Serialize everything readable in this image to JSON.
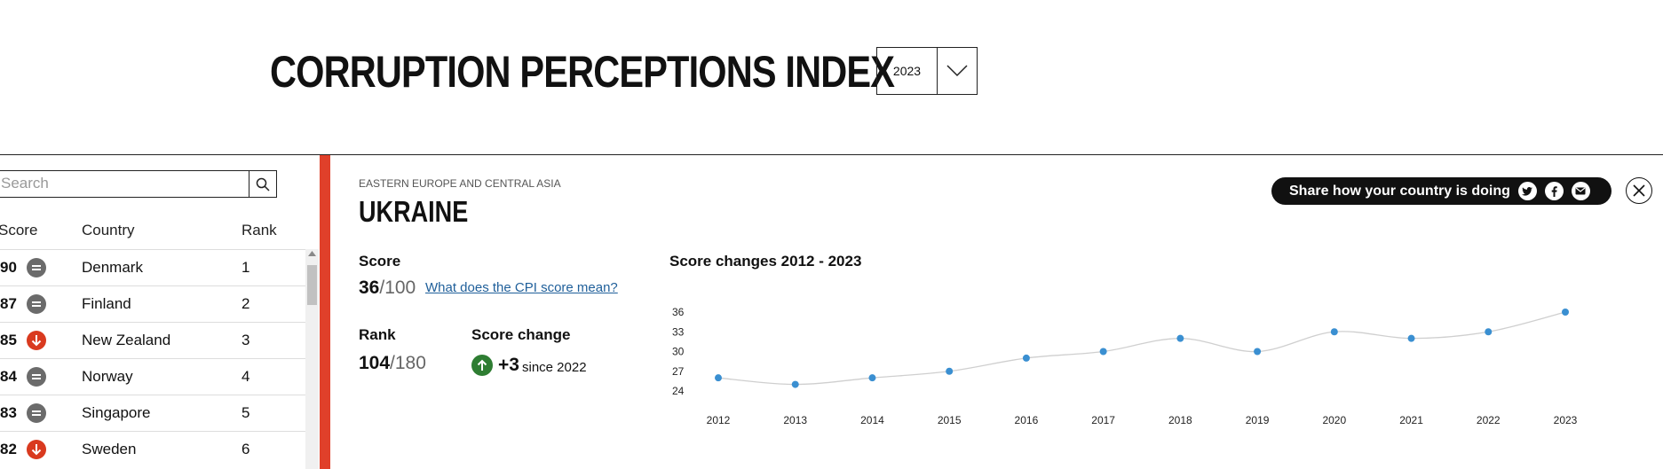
{
  "header": {
    "title": "CORRUPTION PERCEPTIONS INDEX",
    "year_selected": "2023"
  },
  "search": {
    "placeholder": "Search"
  },
  "table": {
    "columns": [
      "Score",
      "Country",
      "Rank"
    ],
    "rows": [
      {
        "score": "90",
        "change": "same",
        "country": "Denmark",
        "rank": "1"
      },
      {
        "score": "87",
        "change": "same",
        "country": "Finland",
        "rank": "2"
      },
      {
        "score": "85",
        "change": "down",
        "country": "New Zealand",
        "rank": "3"
      },
      {
        "score": "84",
        "change": "same",
        "country": "Norway",
        "rank": "4"
      },
      {
        "score": "83",
        "change": "same",
        "country": "Singapore",
        "rank": "5"
      },
      {
        "score": "82",
        "change": "down",
        "country": "Sweden",
        "rank": "6"
      }
    ]
  },
  "colors": {
    "accent": "#e0402a",
    "down": "#d93a1f",
    "same": "#6b6b6b",
    "up": "#2e7d32",
    "point": "#3a8fd1"
  },
  "detail": {
    "region": "EASTERN EUROPE AND CENTRAL ASIA",
    "country": "UKRAINE",
    "score_label": "Score",
    "score_value": "36",
    "score_total": "/100",
    "cpi_link": "What does the CPI score mean?",
    "rank_label": "Rank",
    "rank_value": "104",
    "rank_total": "/180",
    "change_label": "Score change",
    "change_value": "+3",
    "change_since": "since 2022"
  },
  "share": {
    "label": "Share how your country is doing",
    "icons": [
      "twitter-icon",
      "facebook-icon",
      "email-icon"
    ]
  },
  "chart_data": {
    "type": "line",
    "title": "Score changes 2012 - 2023",
    "x": [
      "2012",
      "2013",
      "2014",
      "2015",
      "2016",
      "2017",
      "2018",
      "2019",
      "2020",
      "2021",
      "2022",
      "2023"
    ],
    "series": [
      {
        "values": [
          26,
          25,
          26,
          27,
          29,
          30,
          32,
          30,
          33,
          32,
          33,
          36
        ]
      }
    ],
    "yticks": [
      24,
      27,
      30,
      33,
      36
    ],
    "ylim": [
      24,
      36
    ],
    "grid": false
  }
}
